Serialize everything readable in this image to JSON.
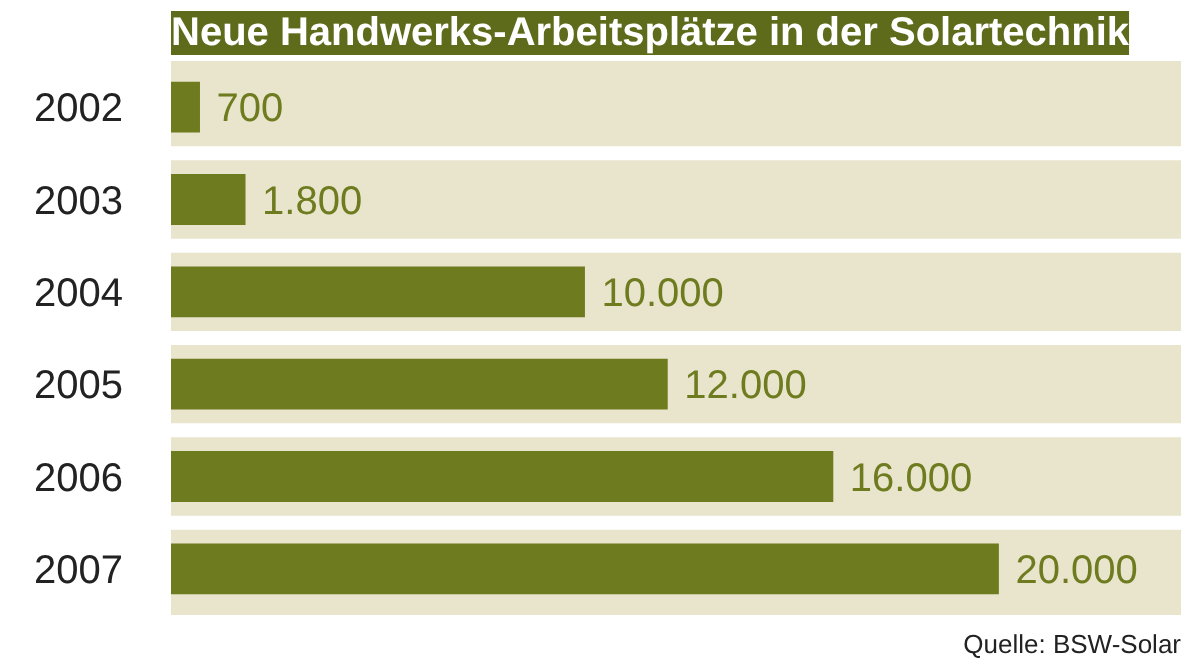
{
  "chart_data": {
    "type": "bar",
    "orientation": "horizontal",
    "title": "Neue Handwerks-Arbeitsplätze in der Solartechnik",
    "categories": [
      "2002",
      "2003",
      "2004",
      "2005",
      "2006",
      "2007"
    ],
    "values": [
      700,
      1800,
      10000,
      12000,
      16000,
      20000
    ],
    "value_labels": [
      "700",
      "1.800",
      "10.000",
      "12.000",
      "16.000",
      "20.000"
    ],
    "color": "#6e7b1f",
    "grid": false,
    "tick_labels": "y",
    "annotations": [
      "Quelle: BSW-Solar"
    ]
  }
}
